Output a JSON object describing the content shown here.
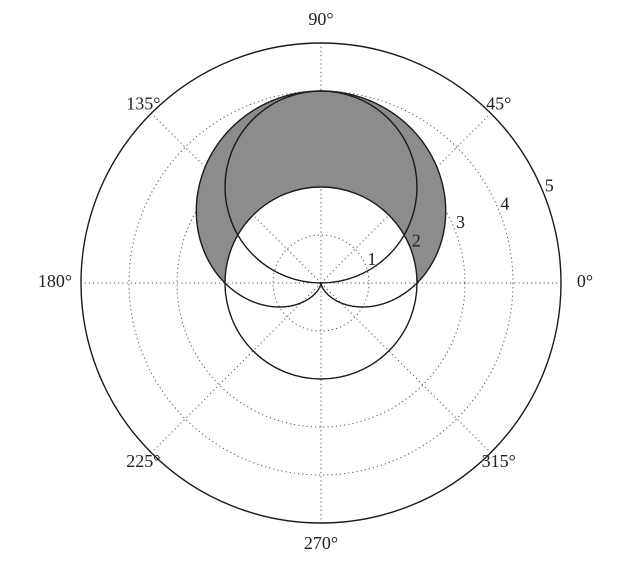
{
  "chart_data": {
    "type": "polar",
    "angle_labels": [
      "0°",
      "45°",
      "90°",
      "135°",
      "180°",
      "225°",
      "270°",
      "315°"
    ],
    "angle_values_deg": [
      0,
      45,
      90,
      135,
      180,
      225,
      270,
      315
    ],
    "radial_labels": [
      "1",
      "2",
      "3",
      "4",
      "5"
    ],
    "radial_values": [
      1,
      2,
      3,
      4,
      5
    ],
    "r_max": 5,
    "grid": true,
    "grid_style": "dotted",
    "curves": [
      {
        "equation": "r = 2 + 2 sin(θ)",
        "kind": "cardioid",
        "a": 2,
        "b": 2
      },
      {
        "equation": "r = 4 sin(θ)",
        "kind": "circle",
        "diameter": 4,
        "center": [
          0,
          2
        ]
      },
      {
        "equation": "r = 2",
        "kind": "circle",
        "radius": 2,
        "center": [
          0,
          0
        ]
      }
    ],
    "shaded_region": {
      "description": "inside cardioid r = 2 + 2 sin(θ) and outside circle r = 2",
      "theta_range_deg": [
        0,
        180
      ],
      "outer_curve": "r = 2 + 2 sin(θ)",
      "inner_curve": "r = 2"
    },
    "colors": {
      "fill": "#8c8c8c",
      "stroke": "#1a1a1a",
      "grid": "#555555"
    }
  }
}
